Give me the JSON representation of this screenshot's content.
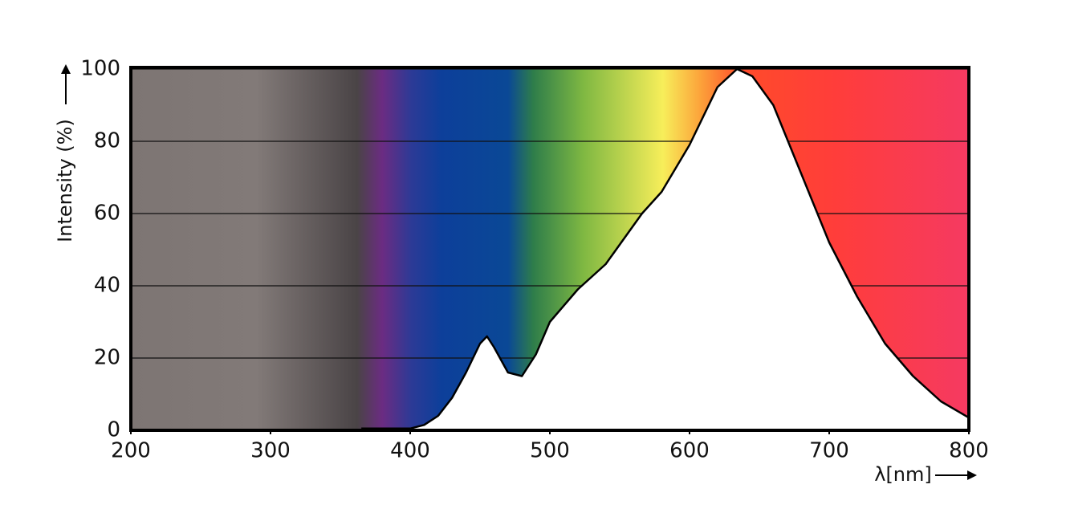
{
  "chart_data": {
    "type": "line",
    "ylabel": "Intensity (%)",
    "xlabel": "λ[nm]",
    "x": [
      365,
      380,
      400,
      410,
      420,
      430,
      440,
      450,
      455,
      460,
      470,
      480,
      490,
      500,
      520,
      540,
      566,
      580,
      600,
      620,
      634,
      645,
      660,
      680,
      700,
      720,
      740,
      760,
      780,
      800
    ],
    "values": [
      0.5,
      0.5,
      0.5,
      1.5,
      4,
      9,
      16,
      24,
      26,
      23,
      16,
      15,
      21,
      30,
      39,
      46,
      60,
      66,
      79,
      95,
      100,
      98,
      90,
      71,
      52,
      37,
      24,
      15,
      8,
      3.5
    ],
    "color": "#000000",
    "xlim": [
      200,
      800
    ],
    "xticks": [
      200,
      300,
      400,
      500,
      600,
      700,
      800
    ],
    "ylim": [
      0,
      100
    ],
    "yticks": [
      0,
      20,
      40,
      60,
      80,
      100
    ],
    "grid": true
  }
}
